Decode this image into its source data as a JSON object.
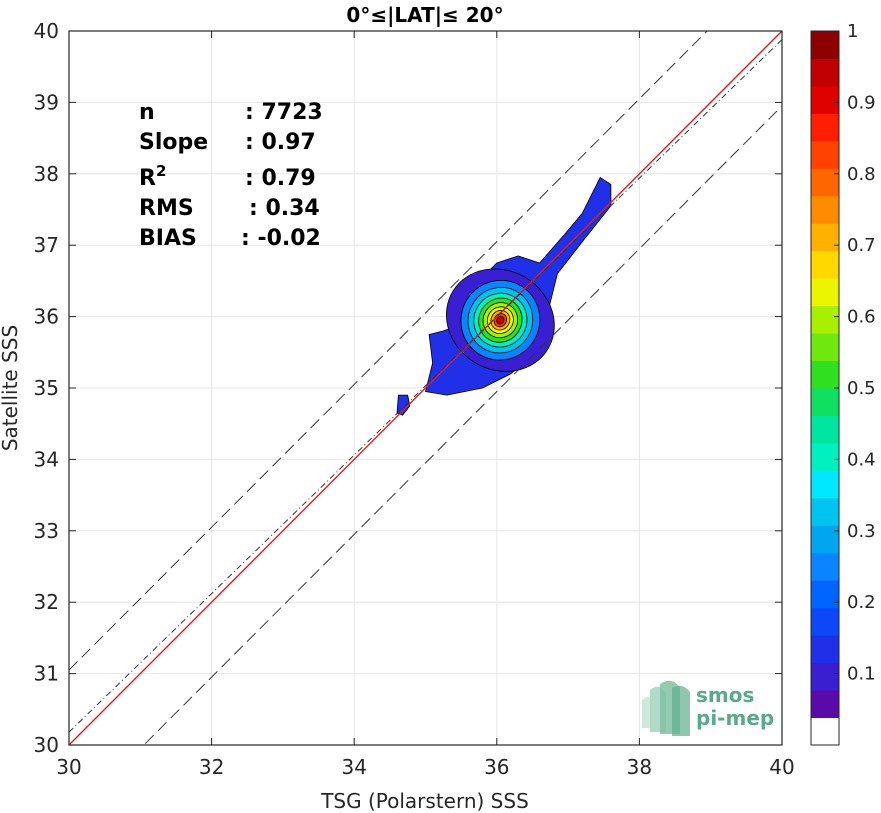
{
  "chart_data": {
    "type": "contour",
    "title": "0°≤|LAT|≤ 20°",
    "xlabel": "TSG (Polarstern) SSS",
    "ylabel": "Satellite SSS",
    "xlim": [
      30,
      40
    ],
    "ylim": [
      30,
      40
    ],
    "xticks": [
      30,
      32,
      34,
      36,
      38,
      40
    ],
    "yticks": [
      30,
      31,
      32,
      33,
      34,
      35,
      36,
      37,
      38,
      39,
      40
    ],
    "grid": true,
    "stats": [
      {
        "label": "n",
        "value": ": 7723"
      },
      {
        "label": "Slope",
        "value": ": 0.97"
      },
      {
        "label": "R",
        "sup": "2",
        "value": ": 0.79"
      },
      {
        "label": "RMS",
        "value": ": 0.34"
      },
      {
        "label": "BIAS",
        "value": ": -0.02"
      }
    ],
    "lines": [
      {
        "name": "one-to-one",
        "color": "#e41a1c",
        "style": "solid",
        "x": [
          30,
          40
        ],
        "y": [
          30,
          40
        ]
      },
      {
        "name": "regression",
        "color": "#333333",
        "style": "dashdot",
        "x": [
          30,
          40
        ],
        "y": [
          30.18,
          39.88
        ]
      },
      {
        "name": "upper-bound",
        "color": "#333333",
        "style": "dashed",
        "x": [
          30,
          40
        ],
        "y": [
          31.05,
          41.05
        ]
      },
      {
        "name": "lower-bound",
        "color": "#333333",
        "style": "dashed",
        "x": [
          30,
          40
        ],
        "y": [
          28.95,
          38.95
        ]
      }
    ],
    "density_peak": {
      "x": 36.05,
      "y": 35.95
    },
    "contour_levels": [
      0.05,
      0.1,
      0.2,
      0.3,
      0.4,
      0.5,
      0.6,
      0.7,
      0.8,
      0.9,
      1.0
    ],
    "colorbar": {
      "range": [
        0,
        1
      ],
      "ticks": [
        "0.1",
        "0.2",
        "0.3",
        "0.4",
        "0.5",
        "0.6",
        "0.7",
        "0.8",
        "0.9",
        "1"
      ],
      "tick_values": [
        0.1,
        0.2,
        0.3,
        0.4,
        0.5,
        0.6,
        0.7,
        0.8,
        0.9,
        1.0
      ],
      "colors": [
        "#ffffff",
        "#5a0aa8",
        "#3a1ed2",
        "#1f30e8",
        "#0a48f8",
        "#0064ff",
        "#0a84ff",
        "#00a6f0",
        "#00c4f0",
        "#00e8ff",
        "#00f0c0",
        "#00e6a0",
        "#10e060",
        "#30e020",
        "#70e810",
        "#a8f000",
        "#ecf500",
        "#ffd800",
        "#ffb000",
        "#ff8c00",
        "#ff6600",
        "#ff4200",
        "#ff1e00",
        "#e00000",
        "#c00000",
        "#8c0000"
      ]
    }
  },
  "logo": {
    "line1": "smos",
    "line2": "pi-mep"
  }
}
